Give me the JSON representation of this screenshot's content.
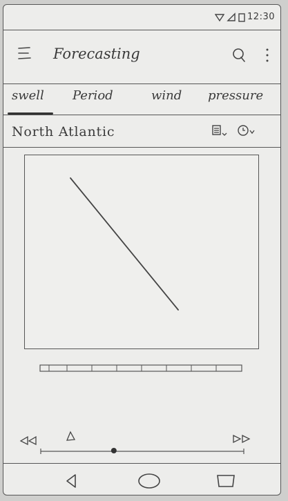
{
  "status_bar": {
    "time": "12:30"
  },
  "app_bar": {
    "title": "Forecasting"
  },
  "tabs": [
    {
      "label": "swell",
      "selected": true
    },
    {
      "label": "Period",
      "selected": false
    },
    {
      "label": "wind",
      "selected": false
    },
    {
      "label": "pressure",
      "selected": false
    }
  ],
  "region": {
    "label": "North Atlantic"
  },
  "playback": {
    "position": 0.36
  },
  "colors": {
    "ink": "#3a3a3a",
    "paper": "#ededeb"
  }
}
